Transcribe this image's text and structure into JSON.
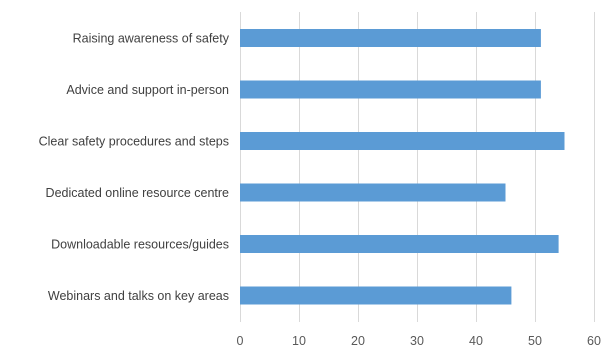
{
  "chart_data": {
    "type": "bar",
    "orientation": "horizontal",
    "categories": [
      "Raising awareness of safety",
      "Advice and support in-person",
      "Clear safety procedures and steps",
      "Dedicated online resource centre",
      "Downloadable resources/guides",
      "Webinars and talks on key areas"
    ],
    "values": [
      51,
      51,
      55,
      45,
      54,
      46
    ],
    "title": "",
    "xlabel": "",
    "ylabel": "",
    "xlim": [
      0,
      60
    ],
    "xticks": [
      0,
      10,
      20,
      30,
      40,
      50,
      60
    ],
    "grid": "vertical",
    "legend": "none",
    "bar_color": "#5b9bd5"
  }
}
